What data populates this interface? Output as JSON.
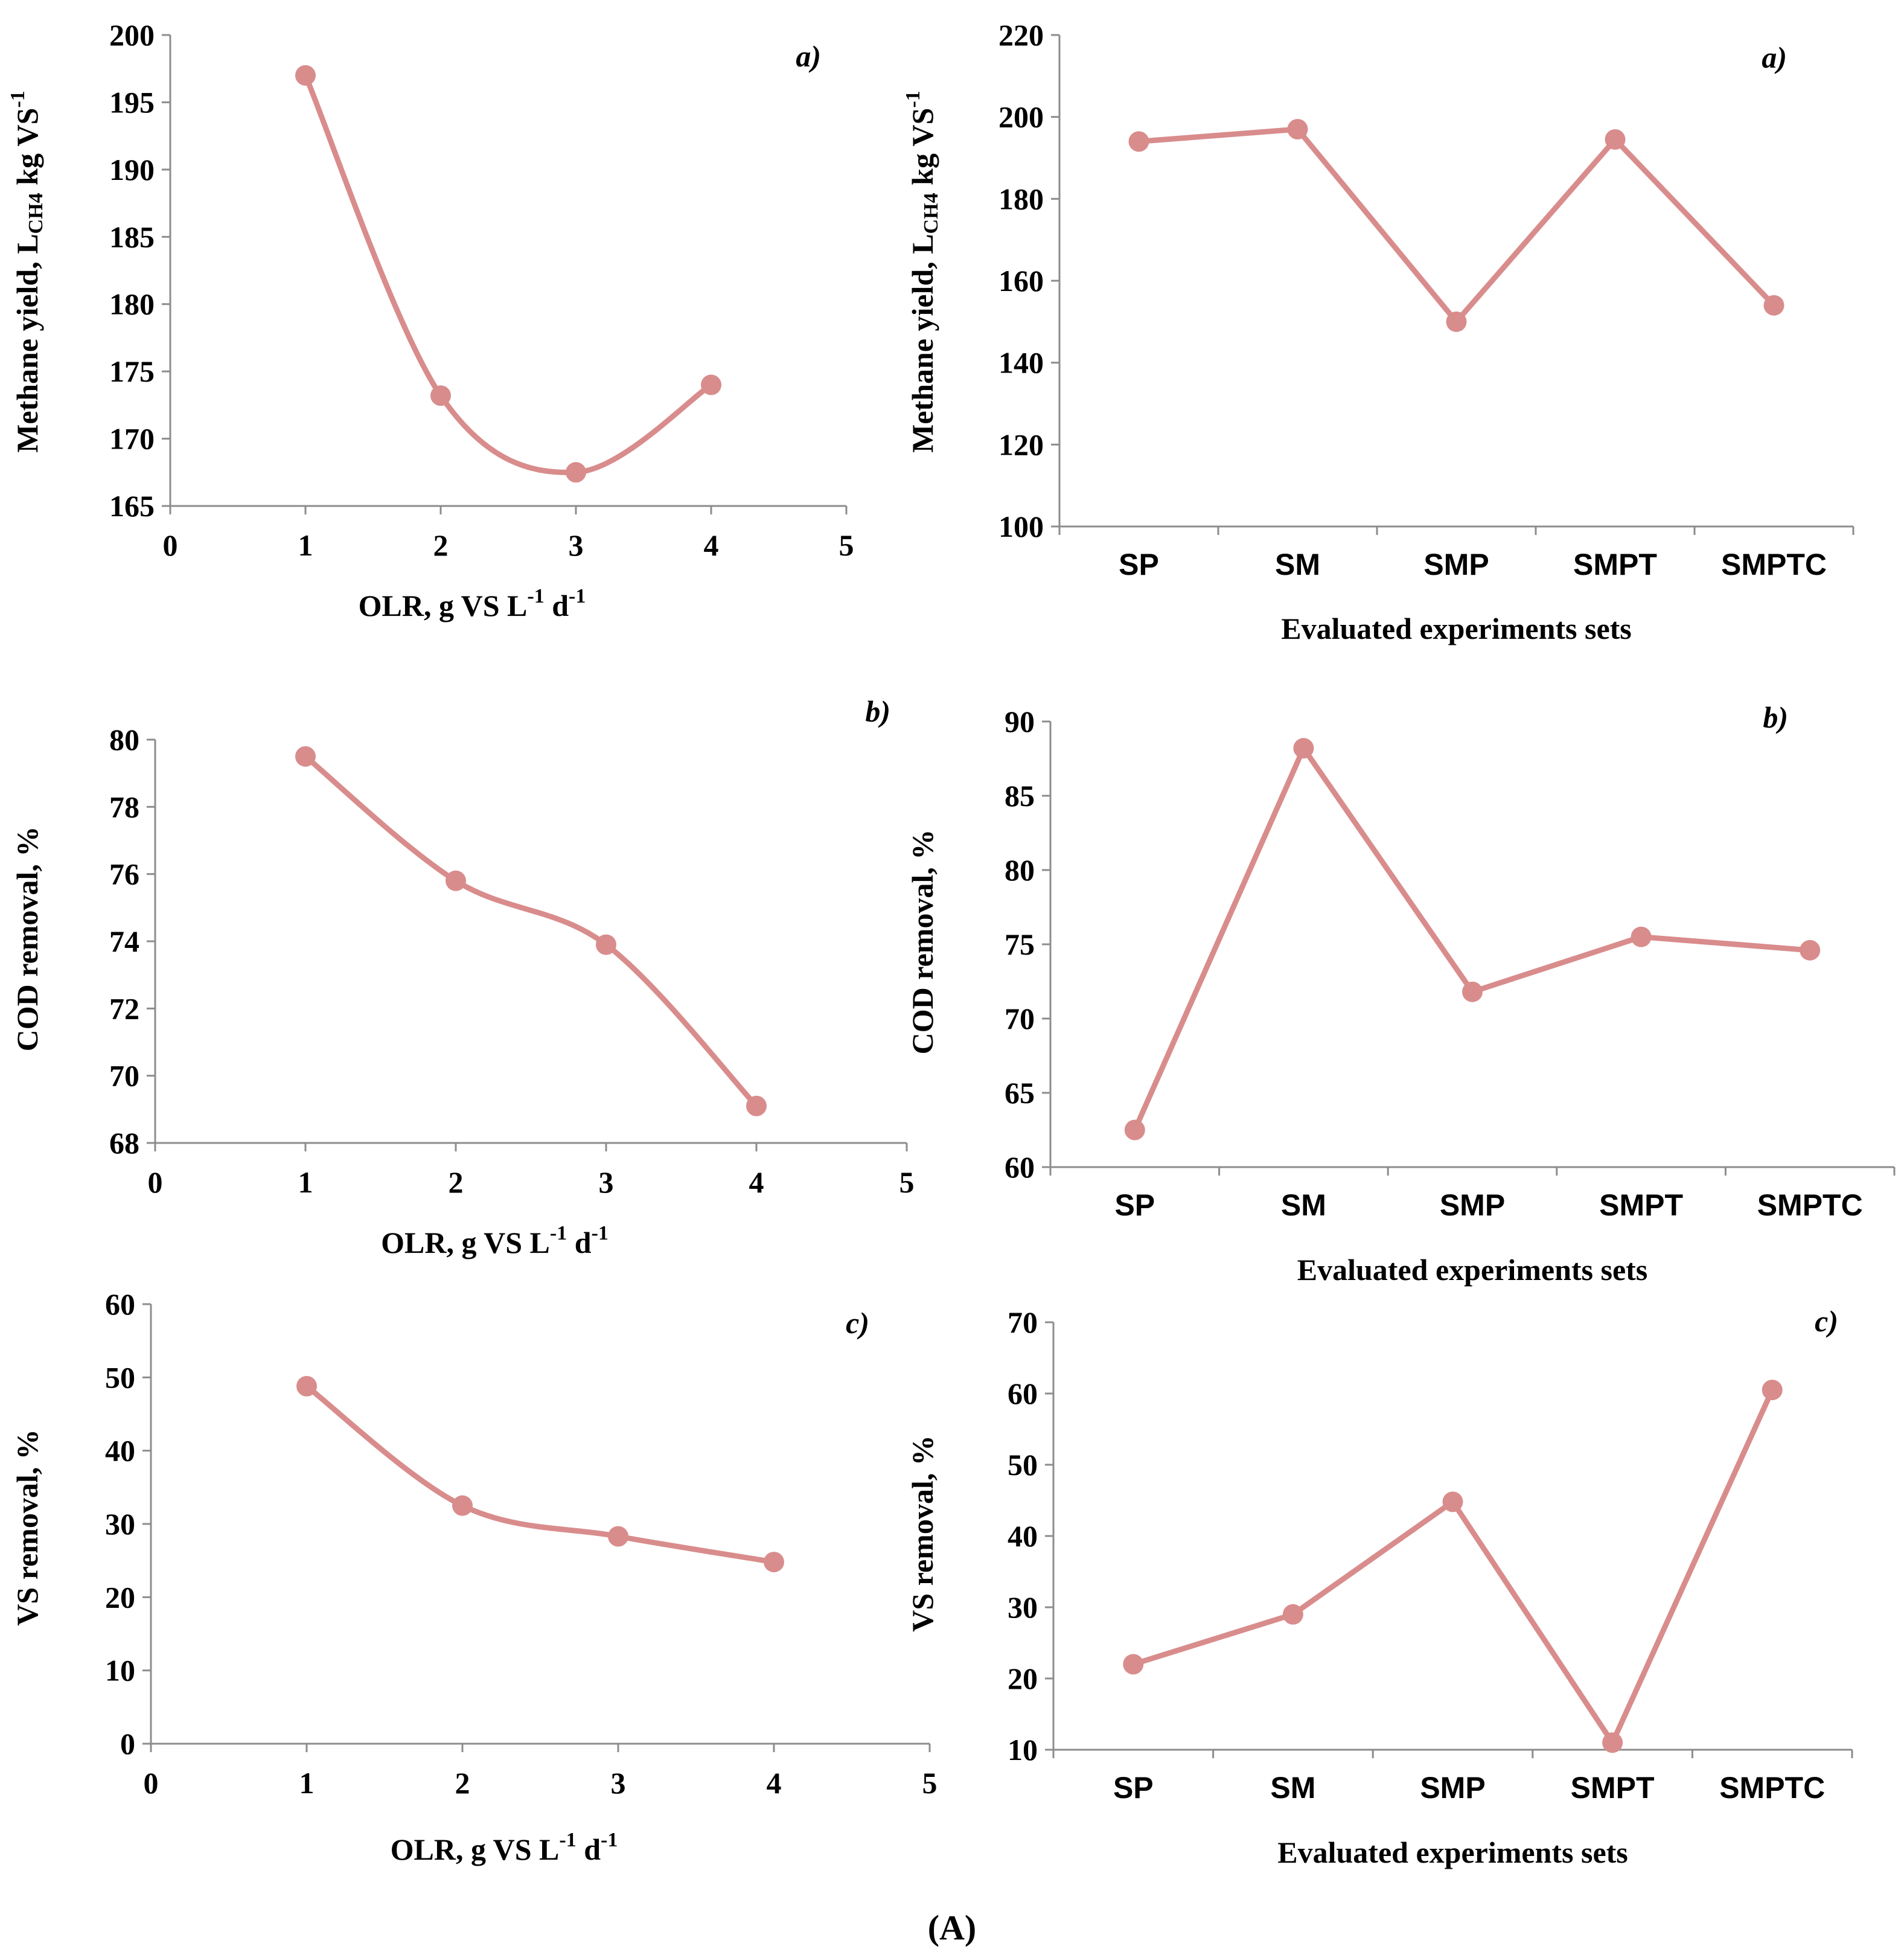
{
  "caption": "(A)",
  "line_color": "#d98c8c",
  "chart_data": [
    {
      "id": "olr-methane",
      "type": "line",
      "smooth": true,
      "panel_label": "a)",
      "ylabel": "Methane yield, L_CH4 kg VS^-1",
      "ylabel_parts": [
        "Methane yield, L",
        "CH4",
        " kg VS",
        "-1"
      ],
      "xlabel": "OLR, g VS L^-1 d^-1",
      "xlabel_parts": [
        "OLR, g VS L",
        "-1",
        " d",
        "-1"
      ],
      "xlim": [
        0,
        5
      ],
      "ylim": [
        165,
        200
      ],
      "xticks": [
        0,
        1,
        2,
        3,
        4,
        5
      ],
      "yticks": [
        165,
        170,
        175,
        180,
        185,
        190,
        195,
        200
      ],
      "x": [
        1,
        2,
        3,
        4
      ],
      "y": [
        197,
        173.2,
        167.5,
        174
      ]
    },
    {
      "id": "sets-methane",
      "type": "line",
      "smooth": false,
      "panel_label": "a)",
      "ylabel": "Methane yield, L_CH4 kg VS^-1",
      "ylabel_parts": [
        "Methane yield, L",
        "CH4",
        " kg VS",
        "-1"
      ],
      "xlabel": "Evaluated experiments sets",
      "xlabel_parts": [
        "Evaluated experiments sets",
        "",
        "",
        ""
      ],
      "ylim": [
        100,
        220
      ],
      "yticks": [
        100,
        120,
        140,
        160,
        180,
        200,
        220
      ],
      "categories": [
        "SP",
        "SM",
        "SMP",
        "SMPT",
        "SMPTC"
      ],
      "values": [
        194,
        197,
        150,
        194.5,
        154
      ]
    },
    {
      "id": "olr-cod",
      "type": "line",
      "smooth": true,
      "panel_label": "b)",
      "ylabel": "COD removal, %",
      "ylabel_parts": [
        "COD removal, %",
        "",
        "",
        ""
      ],
      "xlabel": "OLR, g VS L^-1 d^-1",
      "xlabel_parts": [
        "OLR, g VS L",
        "-1",
        " d",
        "-1"
      ],
      "xlim": [
        0,
        5
      ],
      "ylim": [
        68,
        80
      ],
      "xticks": [
        0,
        1,
        2,
        3,
        4,
        5
      ],
      "yticks": [
        68,
        70,
        72,
        74,
        76,
        78,
        80
      ],
      "x": [
        1,
        2,
        3,
        4
      ],
      "y": [
        79.5,
        75.8,
        73.9,
        69.1
      ]
    },
    {
      "id": "sets-cod",
      "type": "line",
      "smooth": false,
      "panel_label": "b)",
      "ylabel": "COD removal, %",
      "ylabel_parts": [
        "COD removal, %",
        "",
        "",
        ""
      ],
      "xlabel": "Evaluated experiments sets",
      "xlabel_parts": [
        "Evaluated experiments sets",
        "",
        "",
        ""
      ],
      "ylim": [
        60,
        90
      ],
      "yticks": [
        60,
        65,
        70,
        75,
        80,
        85,
        90
      ],
      "categories": [
        "SP",
        "SM",
        "SMP",
        "SMPT",
        "SMPTC"
      ],
      "values": [
        62.5,
        88.2,
        71.8,
        75.5,
        74.6
      ]
    },
    {
      "id": "olr-vs",
      "type": "line",
      "smooth": true,
      "panel_label": "c)",
      "ylabel": "VS removal, %",
      "ylabel_parts": [
        "VS removal, %",
        "",
        "",
        ""
      ],
      "xlabel": "OLR, g VS L^-1 d^-1",
      "xlabel_parts": [
        "OLR, g VS L",
        "-1",
        " d",
        "-1"
      ],
      "xlim": [
        0,
        5
      ],
      "ylim": [
        0,
        60
      ],
      "xticks": [
        0,
        1,
        2,
        3,
        4,
        5
      ],
      "yticks": [
        0,
        10,
        20,
        30,
        40,
        50,
        60
      ],
      "x": [
        1,
        2,
        3,
        4
      ],
      "y": [
        48.8,
        32.5,
        28.3,
        24.8
      ]
    },
    {
      "id": "sets-vs",
      "type": "line",
      "smooth": false,
      "panel_label": "c)",
      "ylabel": "VS removal, %",
      "ylabel_parts": [
        "VS removal, %",
        "",
        "",
        ""
      ],
      "xlabel": "Evaluated experiments sets",
      "xlabel_parts": [
        "Evaluated experiments sets",
        "",
        "",
        ""
      ],
      "ylim": [
        10,
        70
      ],
      "yticks": [
        10,
        20,
        30,
        40,
        50,
        60,
        70
      ],
      "categories": [
        "SP",
        "SM",
        "SMP",
        "SMPT",
        "SMPTC"
      ],
      "values": [
        22,
        29,
        44.8,
        11,
        60.5
      ]
    }
  ]
}
